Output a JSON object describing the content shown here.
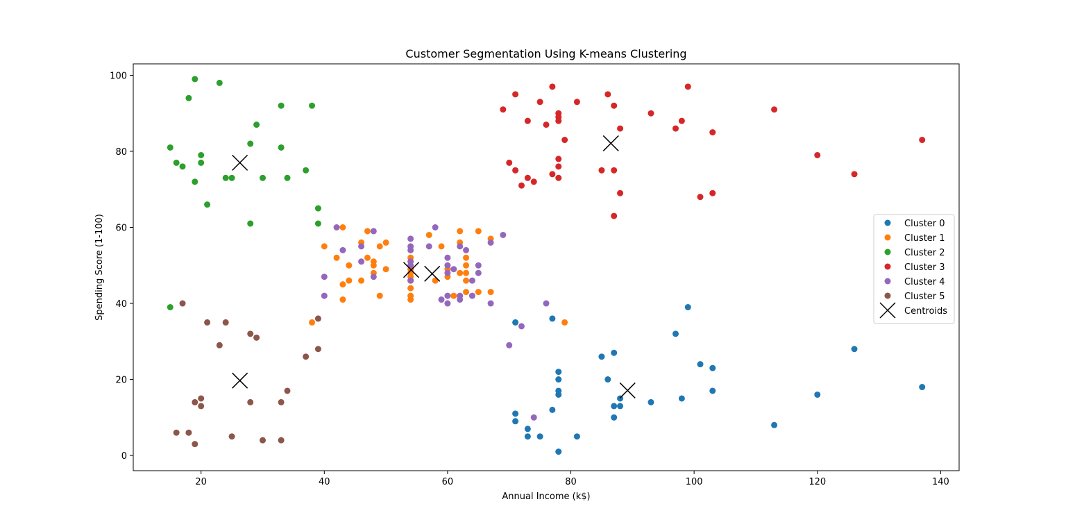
{
  "chart_data": {
    "type": "scatter",
    "title": "Customer Segmentation Using K-means Clustering",
    "xlabel": "Annual Income (k$)",
    "ylabel": "Spending Score (1-100)",
    "xlim": [
      9,
      143
    ],
    "ylim": [
      -4,
      103
    ],
    "xticks": [
      20,
      40,
      60,
      80,
      100,
      120,
      140
    ],
    "yticks": [
      0,
      20,
      40,
      60,
      80,
      100
    ],
    "grid": false,
    "legend_position": "center-right",
    "series": [
      {
        "name": "Cluster 0",
        "color": "#1f77b4",
        "points": [
          [
            71,
            35
          ],
          [
            77,
            36
          ],
          [
            99,
            39
          ],
          [
            97,
            32
          ],
          [
            85,
            26
          ],
          [
            87,
            27
          ],
          [
            126,
            28
          ],
          [
            101,
            24
          ],
          [
            103,
            23
          ],
          [
            78,
            22
          ],
          [
            78,
            20
          ],
          [
            86,
            20
          ],
          [
            78,
            17
          ],
          [
            78,
            16
          ],
          [
            103,
            17
          ],
          [
            88,
            15
          ],
          [
            98,
            15
          ],
          [
            93,
            14
          ],
          [
            87,
            13
          ],
          [
            88,
            13
          ],
          [
            77,
            12
          ],
          [
            71,
            11
          ],
          [
            71,
            9
          ],
          [
            87,
            10
          ],
          [
            113,
            8
          ],
          [
            73,
            7
          ],
          [
            73,
            5
          ],
          [
            75,
            5
          ],
          [
            81,
            5
          ],
          [
            78,
            1
          ],
          [
            120,
            16
          ],
          [
            137,
            18
          ]
        ]
      },
      {
        "name": "Cluster 1",
        "color": "#ff7f0e",
        "points": [
          [
            40,
            55
          ],
          [
            42,
            52
          ],
          [
            43,
            60
          ],
          [
            43,
            45
          ],
          [
            43,
            41
          ],
          [
            44,
            46
          ],
          [
            44,
            50
          ],
          [
            46,
            46
          ],
          [
            46,
            56
          ],
          [
            47,
            52
          ],
          [
            47,
            59
          ],
          [
            48,
            51
          ],
          [
            48,
            50
          ],
          [
            48,
            48
          ],
          [
            49,
            55
          ],
          [
            49,
            42
          ],
          [
            50,
            56
          ],
          [
            50,
            49
          ],
          [
            54,
            41
          ],
          [
            54,
            42
          ],
          [
            54,
            44
          ],
          [
            54,
            46
          ],
          [
            54,
            47
          ],
          [
            54,
            48
          ],
          [
            54,
            49
          ],
          [
            54,
            52
          ],
          [
            57,
            58
          ],
          [
            58,
            46
          ],
          [
            59,
            55
          ],
          [
            60,
            49
          ],
          [
            60,
            47
          ],
          [
            61,
            42
          ],
          [
            62,
            59
          ],
          [
            62,
            56
          ],
          [
            62,
            48
          ],
          [
            63,
            52
          ],
          [
            63,
            50
          ],
          [
            63,
            48
          ],
          [
            63,
            46
          ],
          [
            63,
            43
          ],
          [
            65,
            59
          ],
          [
            65,
            43
          ],
          [
            67,
            57
          ],
          [
            67,
            43
          ],
          [
            38,
            35
          ],
          [
            79,
            35
          ]
        ]
      },
      {
        "name": "Cluster 2",
        "color": "#2ca02c",
        "points": [
          [
            19,
            99
          ],
          [
            23,
            98
          ],
          [
            18,
            94
          ],
          [
            33,
            92
          ],
          [
            38,
            92
          ],
          [
            29,
            87
          ],
          [
            28,
            82
          ],
          [
            15,
            81
          ],
          [
            33,
            81
          ],
          [
            20,
            79
          ],
          [
            16,
            77
          ],
          [
            20,
            77
          ],
          [
            17,
            76
          ],
          [
            37,
            75
          ],
          [
            24,
            73
          ],
          [
            25,
            73
          ],
          [
            30,
            73
          ],
          [
            34,
            73
          ],
          [
            19,
            72
          ],
          [
            21,
            66
          ],
          [
            39,
            65
          ],
          [
            28,
            61
          ],
          [
            39,
            61
          ],
          [
            15,
            39
          ]
        ]
      },
      {
        "name": "Cluster 3",
        "color": "#d62728",
        "points": [
          [
            77,
            97
          ],
          [
            99,
            97
          ],
          [
            71,
            95
          ],
          [
            86,
            95
          ],
          [
            75,
            93
          ],
          [
            81,
            93
          ],
          [
            87,
            92
          ],
          [
            69,
            91
          ],
          [
            113,
            91
          ],
          [
            78,
            90
          ],
          [
            93,
            90
          ],
          [
            78,
            89
          ],
          [
            73,
            88
          ],
          [
            78,
            88
          ],
          [
            98,
            88
          ],
          [
            76,
            87
          ],
          [
            88,
            86
          ],
          [
            97,
            86
          ],
          [
            103,
            85
          ],
          [
            79,
            83
          ],
          [
            137,
            83
          ],
          [
            120,
            79
          ],
          [
            78,
            78
          ],
          [
            70,
            77
          ],
          [
            78,
            76
          ],
          [
            71,
            75
          ],
          [
            85,
            75
          ],
          [
            87,
            75
          ],
          [
            77,
            74
          ],
          [
            126,
            74
          ],
          [
            73,
            73
          ],
          [
            78,
            73
          ],
          [
            74,
            72
          ],
          [
            72,
            71
          ],
          [
            88,
            69
          ],
          [
            103,
            69
          ],
          [
            101,
            68
          ],
          [
            87,
            63
          ]
        ]
      },
      {
        "name": "Cluster 4",
        "color": "#9467bd",
        "points": [
          [
            42,
            60
          ],
          [
            58,
            60
          ],
          [
            48,
            59
          ],
          [
            69,
            58
          ],
          [
            54,
            57
          ],
          [
            46,
            55
          ],
          [
            54,
            55
          ],
          [
            57,
            55
          ],
          [
            62,
            55
          ],
          [
            67,
            56
          ],
          [
            43,
            54
          ],
          [
            54,
            54
          ],
          [
            63,
            54
          ],
          [
            60,
            52
          ],
          [
            54,
            51
          ],
          [
            46,
            51
          ],
          [
            54,
            50
          ],
          [
            60,
            50
          ],
          [
            65,
            50
          ],
          [
            61,
            49
          ],
          [
            60,
            48
          ],
          [
            65,
            48
          ],
          [
            40,
            47
          ],
          [
            48,
            47
          ],
          [
            54,
            46
          ],
          [
            64,
            46
          ],
          [
            40,
            42
          ],
          [
            60,
            42
          ],
          [
            62,
            42
          ],
          [
            64,
            42
          ],
          [
            59,
            41
          ],
          [
            62,
            41
          ],
          [
            60,
            40
          ],
          [
            67,
            40
          ],
          [
            76,
            40
          ],
          [
            72,
            34
          ],
          [
            70,
            29
          ],
          [
            74,
            10
          ]
        ]
      },
      {
        "name": "Cluster 5",
        "color": "#8c564b",
        "points": [
          [
            17,
            40
          ],
          [
            39,
            36
          ],
          [
            21,
            35
          ],
          [
            24,
            35
          ],
          [
            28,
            32
          ],
          [
            29,
            31
          ],
          [
            23,
            29
          ],
          [
            39,
            28
          ],
          [
            37,
            26
          ],
          [
            34,
            17
          ],
          [
            20,
            15
          ],
          [
            19,
            14
          ],
          [
            28,
            14
          ],
          [
            33,
            14
          ],
          [
            20,
            13
          ],
          [
            16,
            6
          ],
          [
            18,
            6
          ],
          [
            25,
            5
          ],
          [
            30,
            4
          ],
          [
            33,
            4
          ],
          [
            19,
            3
          ]
        ]
      }
    ],
    "centroids": {
      "name": "Centroids",
      "color": "#000000",
      "points": [
        [
          86.5,
          82.1
        ],
        [
          26.3,
          77.0
        ],
        [
          54.1,
          48.8
        ],
        [
          57.5,
          47.8
        ],
        [
          89.2,
          17.1
        ],
        [
          26.3,
          19.7
        ]
      ]
    }
  }
}
